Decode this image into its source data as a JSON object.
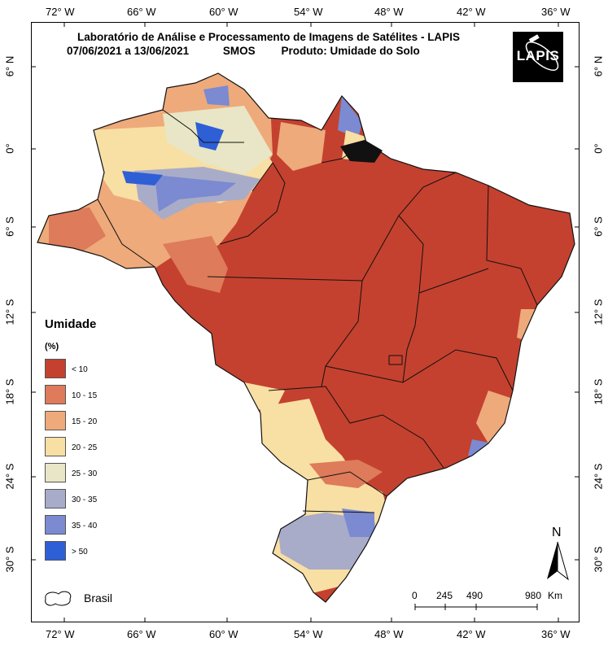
{
  "title": {
    "line1": "Laboratório de Análise e Processamento de Imagens de Satélites - LAPIS",
    "line2_date": "07/06/2021  a  13/06/2021",
    "line2_sensor": "SMOS",
    "line2_product": "Produto: Umidade do Solo"
  },
  "logo": {
    "text": "LAPIS"
  },
  "axes": {
    "lon_ticks": [
      "72° W",
      "66° W",
      "60° W",
      "54° W",
      "48° W",
      "42° W",
      "36° W"
    ],
    "lat_ticks": [
      "6° N",
      "0°",
      "6° S",
      "12° S",
      "18° S",
      "24° S",
      "30° S"
    ]
  },
  "legend": {
    "title": "Umidade",
    "unit": "(%)",
    "classes": [
      {
        "label": "< 10",
        "color": "#c4412f"
      },
      {
        "label": "10 - 15",
        "color": "#dd7b5a"
      },
      {
        "label": "15 - 20",
        "color": "#eeaa7a"
      },
      {
        "label": "20 - 25",
        "color": "#f8dfa3"
      },
      {
        "label": "25 - 30",
        "color": "#e8e6c6"
      },
      {
        "label": "30 - 35",
        "color": "#a8acc8"
      },
      {
        "label": "35 - 40",
        "color": "#7b8ad1"
      },
      {
        "label": "> 50",
        "color": "#2f5fd6"
      }
    ],
    "boundary_label": "Brasil"
  },
  "scalebar": {
    "labels": [
      "0",
      "245",
      "490",
      "980"
    ],
    "unit": "Km"
  },
  "north": {
    "label": "N"
  }
}
